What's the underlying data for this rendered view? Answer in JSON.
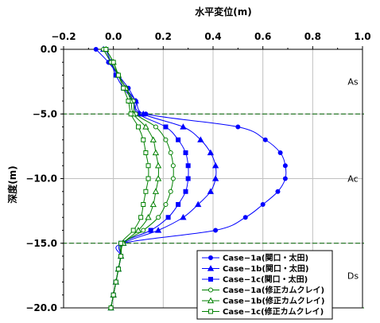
{
  "chart_data": {
    "type": "line",
    "title": "水平変位(m)",
    "xlabel": "水平変位(m)",
    "ylabel": "深度(m)",
    "xlim": [
      -0.2,
      1.0
    ],
    "ylim": [
      -20,
      0
    ],
    "x_ticks": [
      "−0.2",
      "0.0",
      "0.2",
      "0.4",
      "0.6",
      "0.8",
      "1.0"
    ],
    "y_ticks": [
      "0.0",
      "−5.0",
      "−10.0",
      "−15.0",
      "−20.0"
    ],
    "x_tick_values": [
      -0.2,
      0.0,
      0.2,
      0.4,
      0.6,
      0.8,
      1.0
    ],
    "y_tick_values": [
      0,
      -5,
      -10,
      -15,
      -20
    ],
    "grid": true,
    "layer_boundaries": [
      -5,
      -15,
      -20
    ],
    "zones": [
      {
        "label": "As",
        "depth": -2.5
      },
      {
        "label": "Ac",
        "depth": -10
      },
      {
        "label": "Ds",
        "depth": -17.5
      }
    ],
    "legend_position": "bottom-right",
    "depths": [
      0,
      -1,
      -2,
      -3,
      -4,
      -5,
      -6,
      -7,
      -8,
      -9,
      -10,
      -11,
      -12,
      -13,
      -14,
      -15,
      -16,
      -17,
      -18,
      -19,
      -20
    ],
    "series": [
      {
        "name": "Case−1a(関口・太田)",
        "color": "#0000ff",
        "marker": "circle",
        "filled": true,
        "x": [
          -0.07,
          -0.02,
          0.02,
          0.06,
          0.09,
          0.13,
          0.5,
          0.61,
          0.67,
          0.69,
          0.69,
          0.66,
          0.6,
          0.53,
          0.41,
          0.04,
          0.03,
          0.02,
          0.01,
          0.0,
          -0.01
        ]
      },
      {
        "name": "Case−1b(関口・太田)",
        "color": "#0000ff",
        "marker": "triangle",
        "filled": true,
        "x": [
          -0.04,
          -0.01,
          0.02,
          0.05,
          0.09,
          0.12,
          0.28,
          0.35,
          0.39,
          0.41,
          0.41,
          0.39,
          0.34,
          0.28,
          0.18,
          0.04,
          0.03,
          0.02,
          0.01,
          0.0,
          -0.01
        ]
      },
      {
        "name": "Case−1c(関口・太田)",
        "color": "#0000ff",
        "marker": "square",
        "filled": true,
        "x": [
          -0.03,
          -0.01,
          0.01,
          0.04,
          0.08,
          0.1,
          0.21,
          0.26,
          0.29,
          0.3,
          0.3,
          0.29,
          0.26,
          0.22,
          0.15,
          0.03,
          0.03,
          0.02,
          0.01,
          0.0,
          -0.01
        ]
      },
      {
        "name": "Case−1a(修正カムクレイ)",
        "color": "#008000",
        "marker": "circle",
        "filled": false,
        "x": [
          -0.04,
          -0.01,
          0.02,
          0.05,
          0.08,
          0.09,
          0.17,
          0.21,
          0.23,
          0.24,
          0.24,
          0.23,
          0.21,
          0.18,
          0.12,
          0.04,
          0.03,
          0.02,
          0.01,
          0.0,
          -0.01
        ]
      },
      {
        "name": "Case−1b(修正カムクレイ)",
        "color": "#008000",
        "marker": "triangle",
        "filled": false,
        "x": [
          -0.03,
          0.0,
          0.02,
          0.05,
          0.07,
          0.08,
          0.13,
          0.16,
          0.17,
          0.18,
          0.18,
          0.17,
          0.16,
          0.14,
          0.1,
          0.04,
          0.03,
          0.02,
          0.01,
          0.0,
          -0.01
        ]
      },
      {
        "name": "Case−1c(修正カムクレイ)",
        "color": "#008000",
        "marker": "square",
        "filled": false,
        "x": [
          -0.03,
          0.0,
          0.02,
          0.04,
          0.06,
          0.07,
          0.1,
          0.12,
          0.13,
          0.14,
          0.14,
          0.13,
          0.12,
          0.11,
          0.08,
          0.03,
          0.03,
          0.02,
          0.01,
          0.0,
          -0.01
        ]
      }
    ]
  }
}
